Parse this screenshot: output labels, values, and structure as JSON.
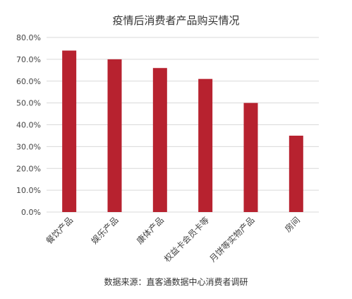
{
  "chart_data": {
    "type": "bar",
    "title": "疫情后消费者产品购买情况",
    "categories": [
      "餐饮产品",
      "娱乐产品",
      "康体产品",
      "权益卡会员卡等",
      "月饼等实物产品",
      "房间"
    ],
    "values": [
      74.0,
      70.0,
      66.0,
      61.0,
      50.0,
      35.0
    ],
    "ylim": [
      0,
      80
    ],
    "yticks": [
      "0.0%",
      "10.0%",
      "20.0%",
      "30.0%",
      "40.0%",
      "50.0%",
      "60.0%",
      "70.0%",
      "80.0%"
    ],
    "ytick_values": [
      0,
      10,
      20,
      30,
      40,
      50,
      60,
      70,
      80
    ],
    "xlabel": "",
    "ylabel": "",
    "grid": true,
    "legend": "none",
    "bar_color": "#b7222f",
    "grid_color": "#d9d9d9",
    "text_color": "#444444"
  },
  "source_text": "数据来源：直客通数据中心消费者调研"
}
